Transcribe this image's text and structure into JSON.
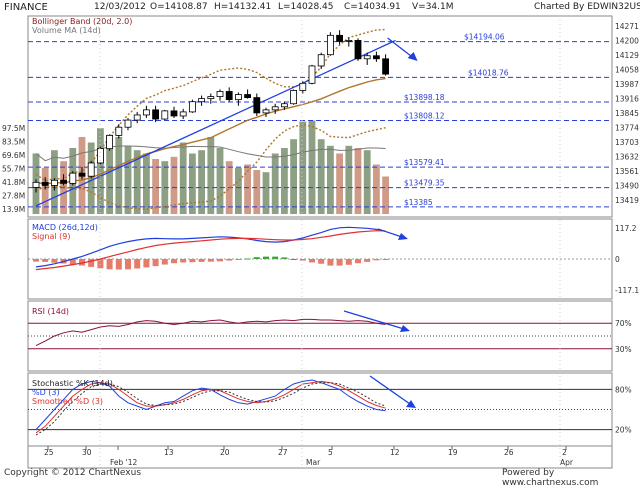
{
  "header": {
    "symbol": "FINANCE",
    "date": "12/03/2012",
    "open": "O=14108.87",
    "high": "H=14132.41",
    "low": "L=14028.45",
    "close": "C=14034.91",
    "volume": "V=34.1M",
    "charted_by": "Charted By EDWIN32US"
  },
  "footer": {
    "copyright": "Copyright © 2012 ChartNexus",
    "powered": "Powered by www.chartnexus.com"
  },
  "colors": {
    "bollinger_band": "#b0762b",
    "trendline": "#1f3fe0",
    "volume_bar_up": "#8ea083",
    "volume_bar_down": "#d09b86",
    "macd_line": "#1f3fe0",
    "signal_line": "#e03030",
    "histogram_up": "#3aa63a",
    "histogram_down": "#e57c6a",
    "rsi_line": "#8a1040",
    "stoch_k": "#1f3fe0",
    "stoch_d": "#e03030",
    "stoch_smoothed": "#333333"
  },
  "chart_data": [
    {
      "type": "candlestick",
      "title": "Bollinger Band (20d, 2.0)",
      "subtitle": "Volume MA (14d)",
      "x_tick_labels": [
        "25",
        "30",
        "Feb '12",
        "13",
        "20",
        "27",
        "Mar",
        "5",
        "12",
        "19",
        "26",
        "2 Apr"
      ],
      "x_month_labels": [
        "Feb '12",
        "Mar",
        "Apr"
      ],
      "y_tick_labels": [
        "14271",
        "14200",
        "14129",
        "14058",
        "13987",
        "13916",
        "13845",
        "13774",
        "13703",
        "13632",
        "13561",
        "13490",
        "13419"
      ],
      "volume_axis_labels": [
        "97.5M",
        "83.5M",
        "69.6M",
        "55.7M",
        "41.8M",
        "27.8M",
        "13.9M"
      ],
      "price_levels": [
        {
          "label": "$14194.06",
          "value": 14194.06
        },
        {
          "label": "$14018.76",
          "value": 14018.76
        },
        {
          "label": "$13898.18",
          "value": 13898.18
        },
        {
          "label": "$13808.12",
          "value": 13808.12
        },
        {
          "label": "$13579.41",
          "value": 13579.41
        },
        {
          "label": "$13479.35",
          "value": 13479.35
        },
        {
          "label": "$13385",
          "value": 13385
        }
      ],
      "ylim": [
        13350,
        14300
      ],
      "ohlc": [
        [
          13480,
          13520,
          13455,
          13505
        ],
        [
          13505,
          13530,
          13470,
          13490
        ],
        [
          13490,
          13525,
          13465,
          13515
        ],
        [
          13515,
          13545,
          13490,
          13500
        ],
        [
          13500,
          13560,
          13490,
          13550
        ],
        [
          13550,
          13580,
          13520,
          13535
        ],
        [
          13535,
          13610,
          13525,
          13600
        ],
        [
          13600,
          13680,
          13590,
          13670
        ],
        [
          13670,
          13740,
          13660,
          13735
        ],
        [
          13735,
          13790,
          13720,
          13775
        ],
        [
          13775,
          13820,
          13760,
          13810
        ],
        [
          13810,
          13850,
          13795,
          13835
        ],
        [
          13835,
          13880,
          13820,
          13860
        ],
        [
          13860,
          13880,
          13800,
          13815
        ],
        [
          13815,
          13860,
          13810,
          13855
        ],
        [
          13855,
          13875,
          13820,
          13830
        ],
        [
          13830,
          13865,
          13815,
          13850
        ],
        [
          13850,
          13910,
          13845,
          13900
        ],
        [
          13900,
          13930,
          13880,
          13915
        ],
        [
          13915,
          13940,
          13890,
          13925
        ],
        [
          13925,
          13960,
          13905,
          13950
        ],
        [
          13950,
          13970,
          13900,
          13910
        ],
        [
          13910,
          13945,
          13880,
          13935
        ],
        [
          13935,
          13960,
          13915,
          13920
        ],
        [
          13920,
          13940,
          13830,
          13845
        ],
        [
          13845,
          13870,
          13825,
          13860
        ],
        [
          13860,
          13890,
          13840,
          13875
        ],
        [
          13875,
          13900,
          13860,
          13890
        ],
        [
          13890,
          13960,
          13885,
          13955
        ],
        [
          13955,
          14000,
          13940,
          13990
        ],
        [
          13990,
          14080,
          13985,
          14075
        ],
        [
          14075,
          14140,
          14060,
          14130
        ],
        [
          14130,
          14240,
          14125,
          14225
        ],
        [
          14225,
          14250,
          14180,
          14195
        ],
        [
          14195,
          14215,
          14170,
          14200
        ],
        [
          14200,
          14210,
          14100,
          14110
        ],
        [
          14110,
          14140,
          14080,
          14125
        ],
        [
          14125,
          14145,
          14095,
          14110
        ],
        [
          14110,
          14132,
          14028,
          14035
        ]
      ],
      "volume_millions": [
        55,
        42,
        58,
        48,
        60,
        70,
        65,
        78,
        72,
        70,
        62,
        58,
        55,
        50,
        48,
        52,
        65,
        55,
        58,
        70,
        60,
        48,
        42,
        45,
        40,
        38,
        55,
        60,
        68,
        84,
        85,
        68,
        62,
        55,
        62,
        60,
        58,
        45,
        34.1
      ]
    },
    {
      "type": "line",
      "title": "MACD (26d,12d)",
      "legend": [
        "MACD (26d,12d)",
        "Signal (9)"
      ],
      "y_tick_labels": [
        "117.2",
        "0",
        "-117.1"
      ],
      "macd": [
        -30,
        -25,
        -18,
        -10,
        0,
        10,
        22,
        35,
        48,
        58,
        66,
        72,
        76,
        78,
        77,
        76,
        76,
        78,
        80,
        82,
        84,
        83,
        80,
        76,
        70,
        66,
        64,
        66,
        72,
        80,
        90,
        100,
        112,
        118,
        120,
        118,
        116,
        112,
        105
      ],
      "signal": [
        -40,
        -36,
        -32,
        -27,
        -21,
        -15,
        -8,
        0,
        9,
        18,
        27,
        36,
        44,
        51,
        56,
        60,
        63,
        66,
        69,
        72,
        75,
        77,
        78,
        78,
        77,
        75,
        73,
        72,
        72,
        74,
        77,
        82,
        87,
        93,
        98,
        102,
        105,
        107,
        106
      ],
      "histogram": [
        -10,
        -11,
        -14,
        -17,
        -21,
        -25,
        -30,
        -35,
        -39,
        -40,
        -39,
        -36,
        -32,
        -27,
        -21,
        -16,
        -13,
        -12,
        -11,
        -10,
        -9,
        -6,
        -2,
        2,
        7,
        9,
        9,
        6,
        0,
        -6,
        -13,
        -18,
        -25,
        -25,
        -22,
        -16,
        -11,
        -5,
        -1
      ]
    },
    {
      "type": "line",
      "title": "RSI (14d)",
      "y_tick_labels": [
        "70%",
        "30%"
      ],
      "rsi": [
        35,
        42,
        50,
        55,
        58,
        56,
        60,
        64,
        66,
        65,
        68,
        72,
        74,
        73,
        70,
        68,
        70,
        73,
        72,
        74,
        75,
        72,
        70,
        72,
        73,
        72,
        74,
        75,
        74,
        76,
        76,
        75,
        75,
        74,
        73,
        74,
        73,
        70,
        68
      ]
    },
    {
      "type": "line",
      "title": "Stochastic %K (14d)",
      "legend": [
        "Stochastic %K (14d)",
        "%D (3)",
        "Smoothed %D (3)"
      ],
      "y_tick_labels": [
        "80%",
        "20%"
      ],
      "k": [
        20,
        35,
        50,
        65,
        80,
        88,
        92,
        90,
        85,
        70,
        60,
        55,
        50,
        55,
        60,
        62,
        70,
        78,
        82,
        80,
        72,
        65,
        60,
        58,
        62,
        66,
        70,
        80,
        88,
        92,
        94,
        90,
        85,
        80,
        70,
        62,
        55,
        50,
        48
      ],
      "d": [
        15,
        25,
        40,
        55,
        70,
        80,
        88,
        90,
        88,
        80,
        70,
        60,
        55,
        55,
        57,
        60,
        65,
        72,
        78,
        80,
        78,
        72,
        66,
        62,
        60,
        62,
        66,
        72,
        80,
        88,
        90,
        92,
        90,
        85,
        78,
        70,
        62,
        56,
        52
      ],
      "smoothed": [
        12,
        20,
        32,
        48,
        62,
        74,
        84,
        88,
        88,
        84,
        76,
        66,
        58,
        56,
        57,
        58,
        62,
        68,
        74,
        78,
        78,
        76,
        70,
        65,
        62,
        61,
        63,
        68,
        74,
        82,
        88,
        90,
        90,
        88,
        82,
        76,
        68,
        60,
        55
      ]
    }
  ]
}
